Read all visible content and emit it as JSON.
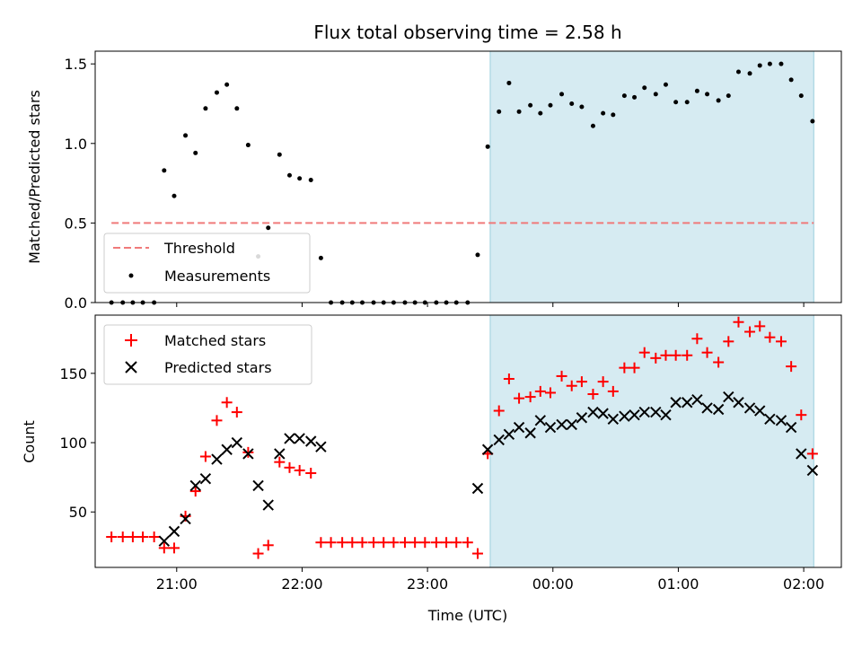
{
  "chart_data": [
    {
      "type": "scatter",
      "title": "Flux total observing time = 2.58 h",
      "ylabel": "Matched/Predicted stars",
      "xlabel": "",
      "x_unit": "time UTC (hours from 00:00 of first day; values >= 24 fall after midnight)",
      "xlim": [
        20.35,
        26.3
      ],
      "ylim": [
        0,
        1.58
      ],
      "x_ticks": [
        21,
        22,
        23,
        24,
        25,
        26
      ],
      "x_tick_labels": [
        "21:00",
        "22:00",
        "23:00",
        "00:00",
        "01:00",
        "02:00"
      ],
      "y_ticks": [
        0.0,
        0.5,
        1.0,
        1.5
      ],
      "y_tick_labels": [
        "0.0",
        "0.5",
        "1.0",
        "1.5"
      ],
      "shaded_interval": [
        23.5,
        26.08
      ],
      "threshold": {
        "name": "Threshold",
        "y": 0.5,
        "x_range": [
          20.48,
          26.08
        ],
        "color": "#f07a7a",
        "style": "dashed"
      },
      "series": [
        {
          "name": "Measurements",
          "marker": "dot",
          "color": "#000000",
          "x": [
            20.48,
            20.57,
            20.65,
            20.73,
            20.82,
            20.9,
            20.98,
            21.07,
            21.15,
            21.23,
            21.32,
            21.4,
            21.48,
            21.57,
            21.65,
            21.73,
            21.82,
            21.9,
            21.98,
            22.07,
            22.15,
            22.23,
            22.32,
            22.4,
            22.48,
            22.57,
            22.65,
            22.73,
            22.82,
            22.9,
            22.98,
            23.07,
            23.15,
            23.23,
            23.32,
            23.4,
            23.48,
            23.57,
            23.65,
            23.73,
            23.82,
            23.9,
            23.98,
            24.07,
            24.15,
            24.23,
            24.32,
            24.4,
            24.48,
            24.57,
            24.65,
            24.73,
            24.82,
            24.9,
            24.98,
            25.07,
            25.15,
            25.23,
            25.32,
            25.4,
            25.48,
            25.57,
            25.65,
            25.73,
            25.82,
            25.9,
            25.98,
            26.07
          ],
          "y": [
            0.0,
            0.0,
            0.0,
            0.0,
            0.0,
            0.83,
            0.67,
            1.05,
            0.94,
            1.22,
            1.32,
            1.37,
            1.22,
            0.99,
            0.29,
            0.47,
            0.93,
            0.8,
            0.78,
            0.77,
            0.28,
            0.0,
            0.0,
            0.0,
            0.0,
            0.0,
            0.0,
            0.0,
            0.0,
            0.0,
            0.0,
            0.0,
            0.0,
            0.0,
            0.0,
            0.3,
            0.98,
            1.2,
            1.38,
            1.2,
            1.24,
            1.19,
            1.24,
            1.31,
            1.25,
            1.23,
            1.11,
            1.19,
            1.18,
            1.3,
            1.29,
            1.35,
            1.31,
            1.37,
            1.26,
            1.26,
            1.33,
            1.31,
            1.27,
            1.3,
            1.45,
            1.44,
            1.49,
            1.5,
            1.5,
            1.4,
            1.3,
            1.14
          ]
        }
      ],
      "legend": {
        "position": "lower-left",
        "entries": [
          "Threshold",
          "Measurements"
        ]
      }
    },
    {
      "type": "scatter",
      "title": "",
      "ylabel": "Count",
      "xlabel": "Time (UTC)",
      "xlim": [
        20.35,
        26.3
      ],
      "ylim": [
        10,
        192
      ],
      "x_ticks": [
        21,
        22,
        23,
        24,
        25,
        26
      ],
      "x_tick_labels": [
        "21:00",
        "22:00",
        "23:00",
        "00:00",
        "01:00",
        "02:00"
      ],
      "y_ticks": [
        50,
        100,
        150
      ],
      "y_tick_labels": [
        "50",
        "100",
        "150"
      ],
      "shaded_interval": [
        23.5,
        26.08
      ],
      "series": [
        {
          "name": "Matched stars",
          "marker": "plus",
          "color": "#ff0000",
          "x": [
            20.48,
            20.57,
            20.65,
            20.73,
            20.82,
            20.9,
            20.98,
            21.07,
            21.15,
            21.23,
            21.32,
            21.4,
            21.48,
            21.57,
            21.65,
            21.73,
            21.82,
            21.9,
            21.98,
            22.07,
            22.15,
            22.23,
            22.32,
            22.4,
            22.48,
            22.57,
            22.65,
            22.73,
            22.82,
            22.9,
            22.98,
            23.07,
            23.15,
            23.23,
            23.32,
            23.4,
            23.48,
            23.57,
            23.65,
            23.73,
            23.82,
            23.9,
            23.98,
            24.07,
            24.15,
            24.23,
            24.32,
            24.4,
            24.48,
            24.57,
            24.65,
            24.73,
            24.82,
            24.9,
            24.98,
            25.07,
            25.15,
            25.23,
            25.32,
            25.4,
            25.48,
            25.57,
            25.65,
            25.73,
            25.82,
            25.9,
            25.98,
            26.07
          ],
          "y": [
            32,
            32,
            32,
            32,
            32,
            24,
            24,
            47,
            65,
            90,
            116,
            129,
            122,
            93,
            20,
            26,
            86,
            82,
            80,
            78,
            28,
            28,
            28,
            28,
            28,
            28,
            28,
            28,
            28,
            28,
            28,
            28,
            28,
            28,
            28,
            20,
            92,
            123,
            146,
            132,
            133,
            137,
            136,
            148,
            141,
            144,
            135,
            144,
            137,
            154,
            154,
            165,
            161,
            163,
            163,
            163,
            175,
            165,
            158,
            173,
            187,
            180,
            184,
            176,
            173,
            155,
            120,
            92
          ]
        },
        {
          "name": "Predicted stars",
          "marker": "x",
          "color": "#000000",
          "x": [
            20.9,
            20.98,
            21.07,
            21.15,
            21.23,
            21.32,
            21.4,
            21.48,
            21.57,
            21.65,
            21.73,
            21.82,
            21.9,
            21.98,
            22.07,
            22.15,
            23.4,
            23.48,
            23.57,
            23.65,
            23.73,
            23.82,
            23.9,
            23.98,
            24.07,
            24.15,
            24.23,
            24.32,
            24.4,
            24.48,
            24.57,
            24.65,
            24.73,
            24.82,
            24.9,
            24.98,
            25.07,
            25.15,
            25.23,
            25.32,
            25.4,
            25.48,
            25.57,
            25.65,
            25.73,
            25.82,
            25.9,
            25.98,
            26.07
          ],
          "y": [
            29,
            36,
            45,
            69,
            74,
            88,
            95,
            100,
            92,
            69,
            55,
            92,
            103,
            103,
            101,
            97,
            67,
            95,
            102,
            106,
            111,
            107,
            116,
            111,
            113,
            113,
            118,
            122,
            121,
            117,
            119,
            120,
            122,
            122,
            120,
            129,
            129,
            131,
            125,
            124,
            133,
            129,
            125,
            123,
            117,
            116,
            111,
            92,
            80
          ]
        }
      ],
      "legend": {
        "position": "upper-left",
        "entries": [
          "Matched stars",
          "Predicted stars"
        ]
      }
    }
  ]
}
